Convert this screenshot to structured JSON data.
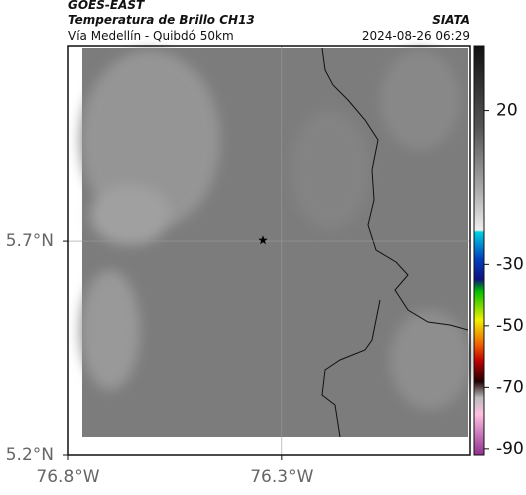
{
  "header": {
    "title": "GOES-EAST",
    "subtitle": "Temperatura de Brillo CH13",
    "location": "Vía Medellín - Quibdó 50km",
    "source": "SIATA",
    "datetime": "2024-08-26 06:29"
  },
  "map": {
    "xlim": [
      -76.8,
      -75.86
    ],
    "ylim": [
      5.2,
      6.156
    ],
    "xticks": [
      {
        "value": -76.8,
        "label": "76.8°W"
      },
      {
        "value": -76.3,
        "label": "76.3°W"
      }
    ],
    "yticks": [
      {
        "value": 5.7,
        "label": "5.7°N"
      },
      {
        "value": 5.2,
        "label": "5.2°N"
      }
    ],
    "marker": {
      "lon": -76.344,
      "lat": 5.702
    }
  },
  "colorbar": {
    "lim": [
      -92,
      41
    ],
    "ticks": [
      20,
      -30,
      -50,
      -70,
      -90
    ]
  }
}
